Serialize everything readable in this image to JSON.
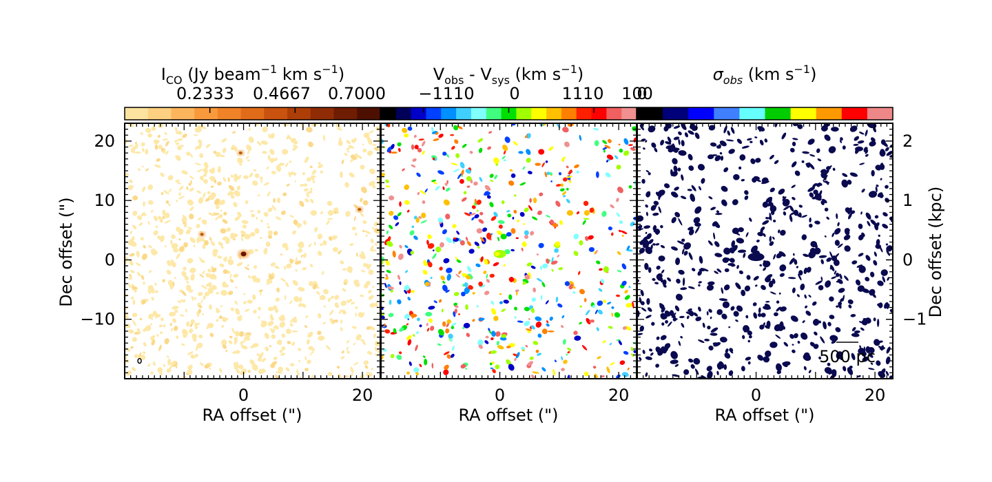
{
  "chart_data": [
    {
      "type": "heatmap",
      "panel": "moment0",
      "colorbar": {
        "title": "I_CO (Jy beam^-1 km s^-1)",
        "title_parts": {
          "main": "I",
          "sub": "CO",
          "rest": " (Jy beam",
          "sup1": "−1",
          "rest2": " km s",
          "sup2": "−1",
          "end": ")"
        },
        "range": [
          0,
          0.7
        ],
        "ticks": [
          0.2333,
          0.4667,
          0.7
        ],
        "tick_labels": [
          "0.2333",
          "0.4667",
          "0.7000"
        ],
        "colors": [
          "#fde3a0",
          "#fdd081",
          "#fbb55c",
          "#f89a3c",
          "#f08228",
          "#e06b18",
          "#c8520e",
          "#ad3e08",
          "#8f2c05",
          "#6e1c02",
          "#4d1000"
        ]
      },
      "xlabel": "RA offset (\")",
      "ylabel": "Dec offset (\")",
      "xlim": [
        -20,
        23
      ],
      "ylim": [
        -20,
        23
      ],
      "x_ticks": [
        0,
        20
      ],
      "y_ticks": [
        -10,
        0,
        10,
        20
      ],
      "y_tick_labels": [
        "−10",
        "0",
        "10",
        "20"
      ],
      "features": [
        {
          "label": "nucleus",
          "x": 0,
          "y": 1
        },
        {
          "label": "clump",
          "x": -7,
          "y": 4.3
        },
        {
          "label": "clump",
          "x": -0.5,
          "y": 18
        },
        {
          "label": "clump",
          "x": 19.5,
          "y": 8.5
        }
      ],
      "beam": {
        "x": -17.5,
        "y": -17
      }
    },
    {
      "type": "heatmap",
      "panel": "velocity",
      "colorbar": {
        "title_parts": {
          "v": "V",
          "sub1": "obs",
          "mid": " - V",
          "sub2": "sys",
          "rest": " (km s",
          "sup": "−1",
          "end": ")"
        },
        "range": [
          -1665,
          1665
        ],
        "ticks": [
          -1110,
          0,
          1110
        ],
        "tick_labels": [
          "−1110",
          "0",
          "1110"
        ],
        "colors": [
          "#000000",
          "#00005a",
          "#0000c8",
          "#0040ff",
          "#0090ff",
          "#40d0ff",
          "#80ffff",
          "#40ff80",
          "#00e000",
          "#a0ff00",
          "#ffff00",
          "#ffc000",
          "#ff8000",
          "#ff2000",
          "#ff0000",
          "#f06060",
          "#f09090"
        ]
      },
      "xlabel": "RA offset (\")",
      "x_ticks": [
        0,
        20
      ]
    },
    {
      "type": "heatmap",
      "panel": "dispersion",
      "colorbar": {
        "title": "σ_obs (km s^-1)",
        "title_parts": {
          "sigma": "σ",
          "sub": "obs",
          "rest": " (km s",
          "sup": "−1",
          "end": ")"
        },
        "range": [
          0,
          100
        ],
        "tick_labels": [
          "100",
          "0"
        ],
        "colors": [
          "#000000",
          "#00007a",
          "#0000ff",
          "#4080ff",
          "#66ffff",
          "#00cc00",
          "#ffff00",
          "#ff9900",
          "#ff0000",
          "#ee8888"
        ]
      },
      "xlabel": "RA offset (\")",
      "x_ticks": [
        0,
        20
      ],
      "right_axis": {
        "label": "Dec offset (kpc)",
        "ticks": [
          -1,
          0,
          1,
          2
        ],
        "tick_labels": [
          "−1",
          "0",
          "1",
          "2"
        ],
        "kpc_per_arcsec": 0.1
      },
      "scalebar_label": "500 pc"
    }
  ]
}
